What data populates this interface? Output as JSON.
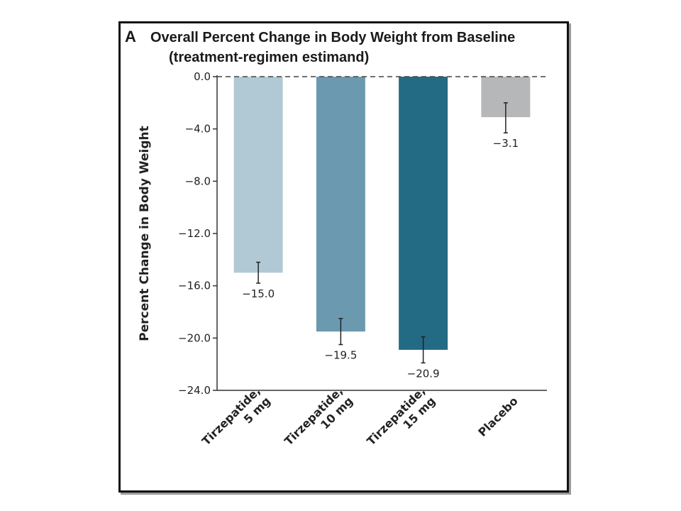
{
  "chart_data": {
    "type": "bar",
    "panel_label": "A",
    "title_line1": "Overall Percent Change in Body Weight from Baseline",
    "title_line2": "(treatment-regimen estimand)",
    "ylabel": "Percent Change in Body Weight",
    "ylim": [
      -24.0,
      0.0
    ],
    "yticks": [
      "0.0",
      "−4.0",
      "−8.0",
      "−12.0",
      "−16.0",
      "−20.0",
      "−24.0"
    ],
    "ytick_values": [
      0,
      -4,
      -8,
      -12,
      -16,
      -20,
      -24
    ],
    "reference_line": 0.0,
    "categories": [
      [
        "Tirzepatide,",
        "5 mg"
      ],
      [
        "Tirzepatide,",
        "10 mg"
      ],
      [
        "Tirzepatide,",
        "15 mg"
      ],
      [
        "Placebo"
      ]
    ],
    "values": [
      -15.0,
      -19.5,
      -20.9,
      -3.1
    ],
    "value_labels": [
      "−15.0",
      "−19.5",
      "−20.9",
      "−3.1"
    ],
    "error_low": [
      -15.8,
      -20.5,
      -21.9,
      -4.3
    ],
    "error_high": [
      -14.2,
      -18.5,
      -19.9,
      -2.0
    ],
    "colors": [
      "#b1c9d5",
      "#6b9ab0",
      "#236a84",
      "#b6b7b9"
    ]
  }
}
